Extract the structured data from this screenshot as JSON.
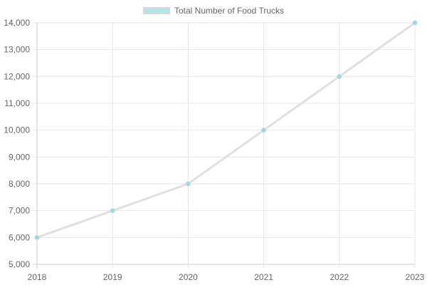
{
  "chart_data": {
    "type": "line",
    "title": "",
    "xlabel": "",
    "ylabel": "",
    "categories": [
      "2018",
      "2019",
      "2020",
      "2021",
      "2022",
      "2023"
    ],
    "series": [
      {
        "name": "Total Number of Food Trucks",
        "values": [
          6000,
          7000,
          8000,
          10000,
          12000,
          14000
        ],
        "line_color": "#e0e0e0",
        "point_color": "#9fd6d9"
      }
    ],
    "ylim": [
      5000,
      14000
    ],
    "yticks": [
      "5,000",
      "6,000",
      "7,000",
      "8,000",
      "9,000",
      "10,000",
      "11,000",
      "12,000",
      "13,000",
      "14,000"
    ],
    "grid": true,
    "legend_position": "top"
  },
  "legend": {
    "label": "Total Number of Food Trucks",
    "swatch_color": "#b2e6e6"
  }
}
